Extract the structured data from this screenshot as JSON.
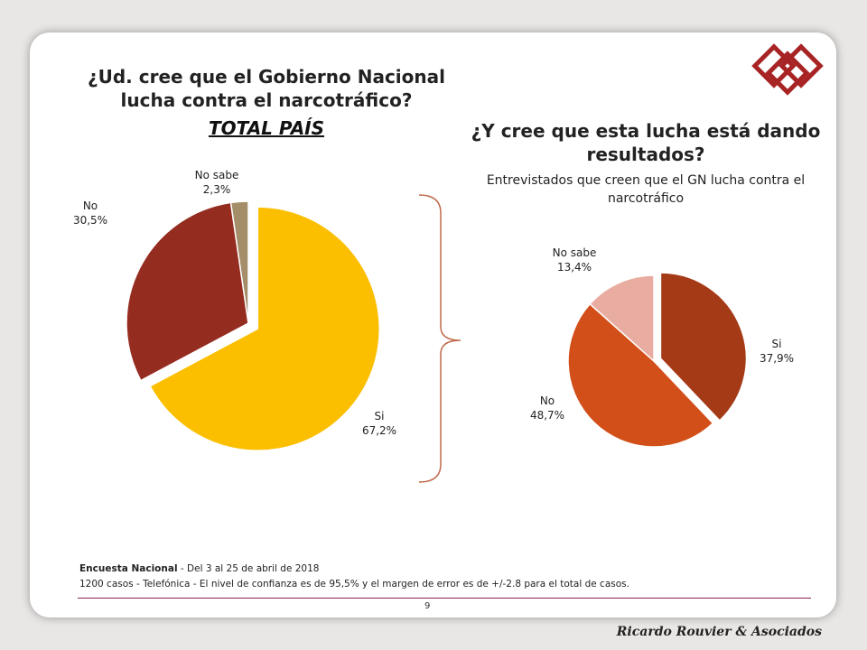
{
  "left_chart": {
    "title": "¿Ud. cree que el Gobierno Nacional lucha contra el narcotráfico?",
    "subtitle": "TOTAL PAÍS"
  },
  "right_chart": {
    "title": "¿Y cree que esta lucha está dando resultados?",
    "subtitle": "Entrevistados que creen que el GN lucha contra el narcotráfico"
  },
  "chart_data": [
    {
      "type": "pie",
      "title": "¿Ud. cree que el Gobierno Nacional lucha contra el narcotráfico?",
      "subtitle": "TOTAL PAÍS",
      "slices": [
        {
          "label": "Si",
          "value": 67.2,
          "display": "67,2%",
          "color": "#fbbf00"
        },
        {
          "label": "No",
          "value": 30.5,
          "display": "30,5%",
          "color": "#952c20"
        },
        {
          "label": "No sabe",
          "value": 2.3,
          "display": "2,3%",
          "color": "#a48e6a"
        }
      ]
    },
    {
      "type": "pie",
      "title": "¿Y cree que esta lucha está dando resultados?",
      "subtitle": "Entrevistados que creen que el GN lucha contra el narcotráfico",
      "slices": [
        {
          "label": "Si",
          "value": 37.9,
          "display": "37,9%",
          "color": "#a53a16"
        },
        {
          "label": "No",
          "value": 48.7,
          "display": "48,7%",
          "color": "#d24f19"
        },
        {
          "label": "No sabe",
          "value": 13.4,
          "display": "13,4%",
          "color": "#e8aca0"
        }
      ]
    }
  ],
  "footer": {
    "survey_name": "Encuesta Nacional",
    "survey_dates": " - Del 3 al 25 de abril de 2018",
    "methodology": "1200 casos - Telefónica   - El nivel de confianza es de 95,5% y el margen de error es de +/-2.8 para el total de casos."
  },
  "page_number": "9",
  "brand": "Ricardo Rouvier & Asociados",
  "colors": {
    "rule": "#8b1f4f",
    "bracket": "#c06a4a",
    "logo": "#a82424"
  }
}
